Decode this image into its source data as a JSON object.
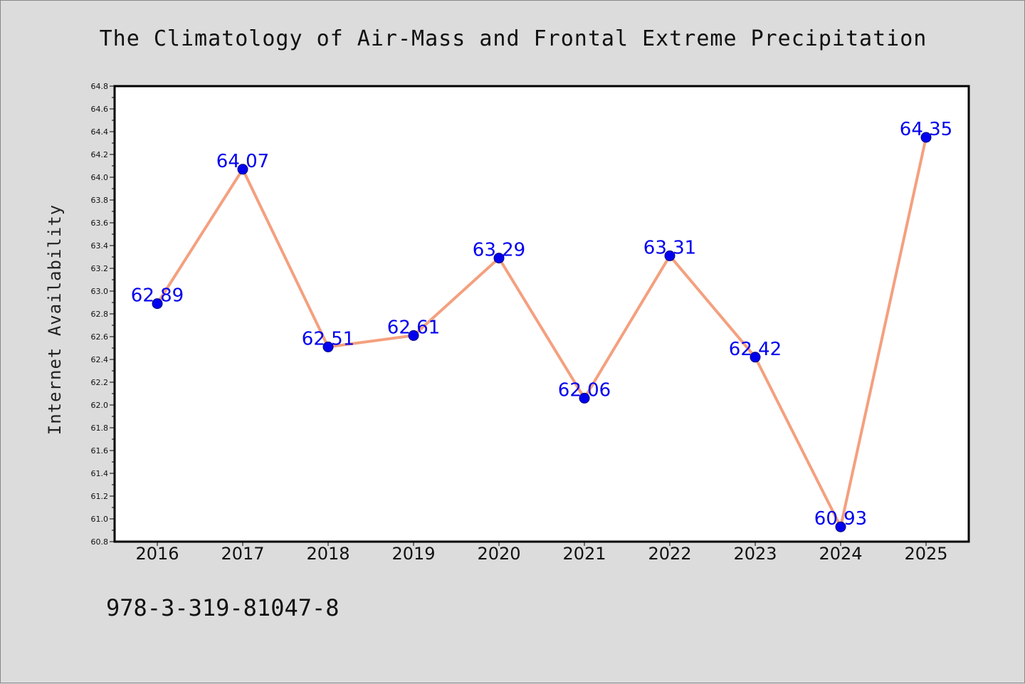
{
  "chart_data": {
    "type": "line",
    "title": "The Climatology of Air-Mass and Frontal Extreme Precipitation",
    "xlabel": "",
    "ylabel": "Internet Availability",
    "categories": [
      "2016",
      "2017",
      "2018",
      "2019",
      "2020",
      "2021",
      "2022",
      "2023",
      "2024",
      "2025"
    ],
    "series": [
      {
        "values": [
          62.89,
          64.07,
          62.51,
          62.61,
          63.29,
          62.06,
          63.31,
          62.42,
          60.93,
          64.35
        ],
        "data_labels": [
          "62.89",
          "64.07",
          "62.51",
          "62.61",
          "63.29",
          "62.06",
          "63.31",
          "62.42",
          "60.93",
          "64.35"
        ],
        "line_color": "#f4a07f",
        "marker_color": "#0000ee"
      }
    ],
    "ylim": [
      60.8,
      64.8
    ],
    "y_ticks": [
      "60.8",
      "61.0",
      "61.2",
      "61.4",
      "61.6",
      "61.8",
      "62.0",
      "62.2",
      "62.4",
      "62.6",
      "62.8",
      "63.0",
      "63.2",
      "63.4",
      "63.6",
      "63.8",
      "64.0",
      "64.2",
      "64.4",
      "64.6",
      "64.8"
    ],
    "grid": false,
    "legend": "none",
    "label_color": "#0000ee"
  },
  "footer": {
    "text": "978-3-319-81047-8"
  }
}
